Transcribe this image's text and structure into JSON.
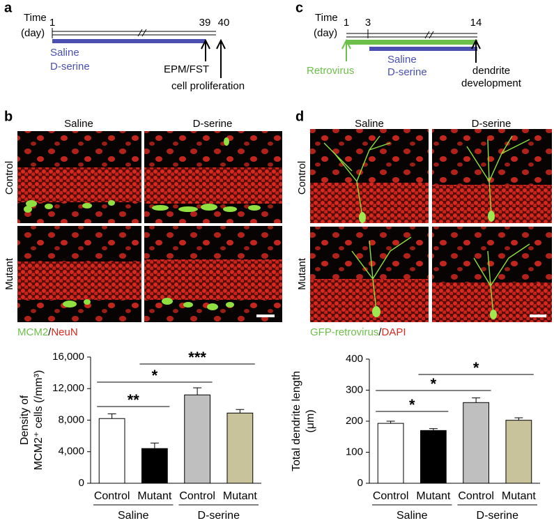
{
  "panels": {
    "a": {
      "label": "a",
      "time": "Time",
      "day": "(day)",
      "ticks": [
        "1",
        "39",
        "40"
      ],
      "treatments": [
        "Saline",
        "D-serine"
      ],
      "events": [
        "EPM/FST",
        "cell proliferation"
      ]
    },
    "b": {
      "label": "b",
      "columns": [
        "Saline",
        "D-serine"
      ],
      "rows": [
        "Control",
        "Mutant"
      ],
      "stain": [
        "MCM2",
        "/",
        "NeuN"
      ]
    },
    "c": {
      "label": "c",
      "time": "Time",
      "day": "(day)",
      "ticks": [
        "1",
        "3",
        "14"
      ],
      "virus": "Retrovirus",
      "treatments": [
        "Saline",
        "D-serine"
      ],
      "events": [
        "dendrite",
        "development"
      ]
    },
    "d": {
      "label": "d",
      "columns": [
        "Saline",
        "D-serine"
      ],
      "rows": [
        "Control",
        "Mutant"
      ],
      "stain": [
        "GFP-retrovirus",
        "/",
        "DAPI"
      ]
    }
  },
  "chart_data": [
    {
      "type": "bar",
      "y_label": [
        "Density of",
        "MCM2⁺ cells (/mm³)"
      ],
      "categories": [
        "Control",
        "Mutant",
        "Control",
        "Mutant"
      ],
      "groups": [
        "Saline",
        "D-serine"
      ],
      "values": [
        8200,
        4400,
        11200,
        8900
      ],
      "errors": [
        600,
        700,
        900,
        450
      ],
      "colors": [
        "#ffffff",
        "#000000",
        "#bfbfbf",
        "#c9c39c"
      ],
      "ylim": [
        0,
        16000
      ],
      "yticks": [
        0,
        {
          "value": 4000,
          "label": "4,000"
        },
        {
          "value": 8000,
          "label": "8,000"
        },
        {
          "value": 12000,
          "label": "12,000"
        },
        {
          "value": 16000,
          "label": "16,000"
        }
      ],
      "significance": [
        "**",
        "*",
        "***"
      ]
    },
    {
      "type": "bar",
      "y_label": [
        "Total dendrite length",
        "(μm)"
      ],
      "categories": [
        "Control",
        "Mutant",
        "Control",
        "Mutant"
      ],
      "groups": [
        "Saline",
        "D-serine"
      ],
      "values": [
        193,
        170,
        260,
        203
      ],
      "errors": [
        7,
        6,
        15,
        8
      ],
      "colors": [
        "#ffffff",
        "#000000",
        "#bfbfbf",
        "#c9c39c"
      ],
      "ylim": [
        0,
        400
      ],
      "yticks": [
        0,
        100,
        200,
        300,
        400
      ],
      "significance": [
        "*",
        "*",
        "*"
      ]
    }
  ]
}
